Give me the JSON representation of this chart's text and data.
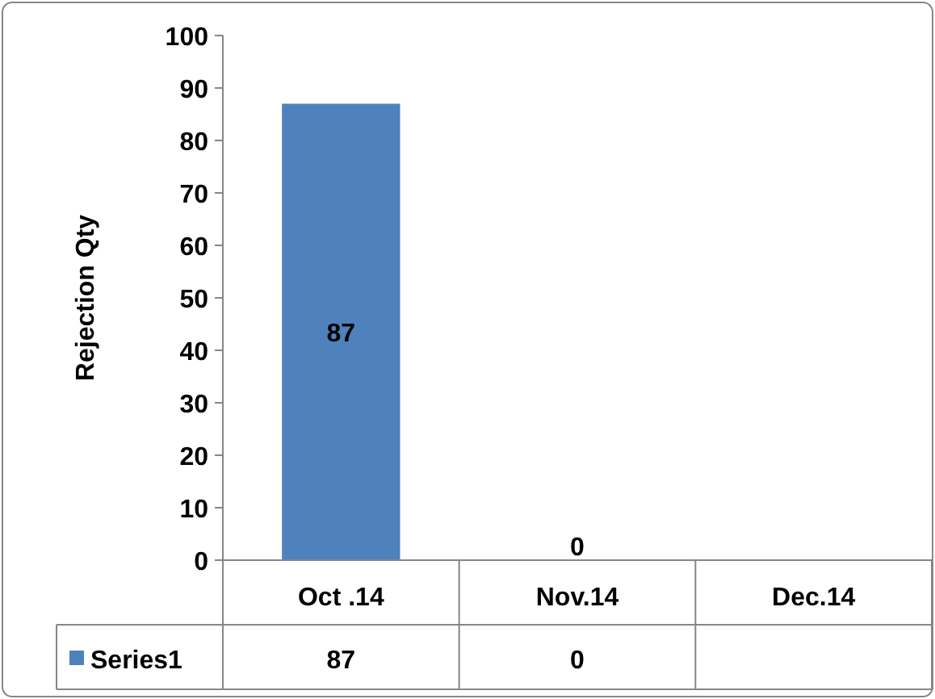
{
  "chart_data": {
    "type": "bar",
    "ylabel": "Rejection Qty",
    "categories": [
      "Oct .14",
      "Nov.14",
      "Dec.14"
    ],
    "series": [
      {
        "name": "Series1",
        "color": "#4f81bd",
        "values": [
          87,
          0,
          null
        ]
      }
    ],
    "annotations": [
      "87",
      "0"
    ],
    "ylim": [
      0,
      100
    ],
    "yticks": [
      0,
      10,
      20,
      30,
      40,
      50,
      60,
      70,
      80,
      90,
      100
    ],
    "grid": false,
    "legend": "bottom",
    "data_labels": true
  }
}
